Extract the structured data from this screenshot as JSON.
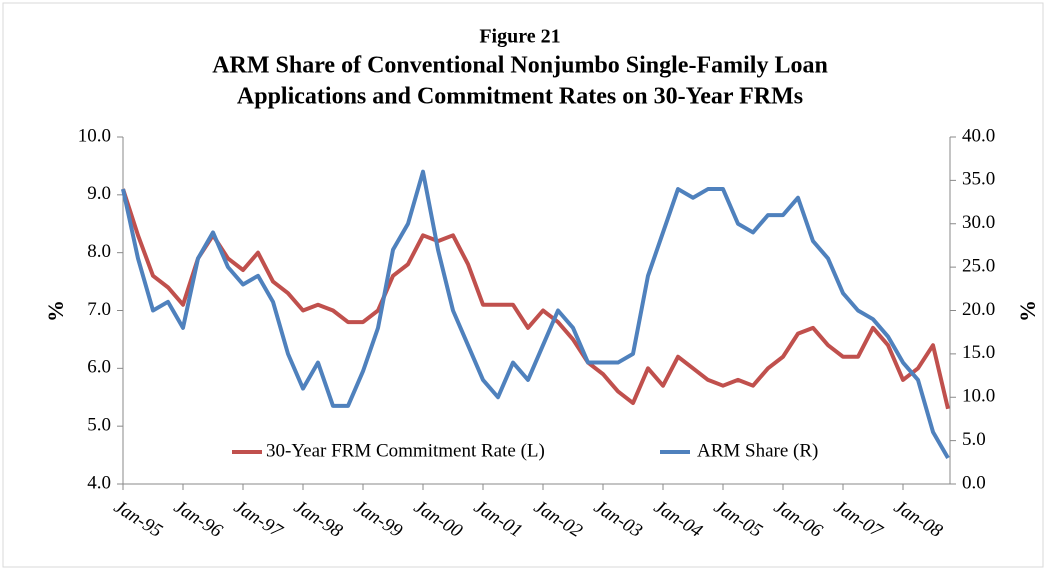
{
  "chart_data": {
    "type": "line",
    "title": [
      "Figure 21",
      "ARM Share of Conventional Nonjumbo Single-Family Loan",
      "Applications and Commitment Rates on 30-Year FRMs"
    ],
    "y_label": "%",
    "y2_label": "%",
    "categories": [
      "Jan-95",
      null,
      null,
      null,
      "Jan-96",
      null,
      null,
      null,
      "Jan-97",
      null,
      null,
      null,
      "Jan-98",
      null,
      null,
      null,
      "Jan-99",
      null,
      null,
      null,
      "Jan-00",
      null,
      null,
      null,
      "Jan-01",
      null,
      null,
      null,
      "Jan-02",
      null,
      null,
      null,
      "Jan-03",
      null,
      null,
      null,
      "Jan-04",
      null,
      null,
      null,
      "Jan-05",
      null,
      null,
      null,
      "Jan-06",
      null,
      null,
      null,
      "Jan-07",
      null,
      null,
      null,
      "Jan-08",
      null,
      null,
      null
    ],
    "series": [
      {
        "name": "30-Year FRM Commitment Rate (L)",
        "color": "#c0504d",
        "axis": "y",
        "values": [
          9.1,
          8.3,
          7.6,
          7.4,
          7.1,
          7.9,
          8.3,
          7.9,
          7.7,
          8.0,
          7.5,
          7.3,
          7.0,
          7.1,
          7.0,
          6.8,
          6.8,
          7.0,
          7.6,
          7.8,
          8.3,
          8.2,
          8.3,
          7.8,
          7.1,
          7.1,
          7.1,
          6.7,
          7.0,
          6.8,
          6.5,
          6.1,
          5.9,
          5.6,
          5.4,
          6.0,
          5.7,
          6.2,
          6.0,
          5.8,
          5.7,
          5.8,
          5.7,
          6.0,
          6.2,
          6.6,
          6.7,
          6.4,
          6.2,
          6.2,
          6.7,
          6.4,
          5.8,
          6.0,
          6.4,
          5.3
        ]
      },
      {
        "name": "ARM Share (R)",
        "color": "#4f81bd",
        "axis": "y2",
        "values": [
          34,
          26,
          20,
          21,
          18,
          26,
          29,
          25,
          23,
          24,
          21,
          15,
          11,
          14,
          9,
          9,
          13,
          18,
          27,
          30,
          36,
          27,
          20,
          16,
          12,
          10,
          14,
          12,
          16,
          20,
          18,
          14,
          14,
          14,
          15,
          24,
          29,
          34,
          33,
          34,
          34,
          30,
          29,
          31,
          31,
          33,
          28,
          26,
          22,
          20,
          19,
          17,
          14,
          12,
          6,
          3
        ]
      }
    ],
    "ylim": [
      4,
      10
    ],
    "yticks": [
      {
        "value": 4,
        "label": "4.0"
      },
      {
        "value": 5,
        "label": "5.0"
      },
      {
        "value": 6,
        "label": "6.0"
      },
      {
        "value": 7,
        "label": "7.0"
      },
      {
        "value": 8,
        "label": "8.0"
      },
      {
        "value": 9,
        "label": "9.0"
      },
      {
        "value": 10,
        "label": "10.0"
      }
    ],
    "y2lim": [
      0,
      40
    ],
    "y2ticks": [
      {
        "value": 0,
        "label": "0.0"
      },
      {
        "value": 5,
        "label": "5.0"
      },
      {
        "value": 10,
        "label": "10.0"
      },
      {
        "value": 15,
        "label": "15.0"
      },
      {
        "value": 20,
        "label": "20.0"
      },
      {
        "value": 25,
        "label": "25.0"
      },
      {
        "value": 30,
        "label": "30.0"
      },
      {
        "value": 35,
        "label": "35.0"
      },
      {
        "value": 40,
        "label": "40.0"
      }
    ],
    "legend": "bottom"
  }
}
